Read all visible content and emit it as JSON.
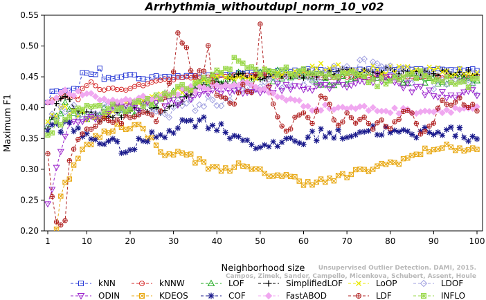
{
  "chart_data": {
    "type": "line",
    "title": "Arrhythmia_withoutdupl_norm_10_v02",
    "xlabel": "Neighborhood size",
    "ylabel": "Maximum F1",
    "xlim": [
      1,
      100
    ],
    "ylim": [
      0.2,
      0.55
    ],
    "xticks": [
      "1",
      "10",
      "20",
      "30",
      "40",
      "50",
      "60",
      "70",
      "80",
      "90",
      "100"
    ],
    "yticks": [
      "0.20",
      "0.25",
      "0.30",
      "0.35",
      "0.40",
      "0.45",
      "0.50",
      "0.55"
    ],
    "grid": false,
    "legend_position": "bottom",
    "watermark_lines": [
      "Campos, Zimek, Sander, Campello, Micenkova, Schubert, Assent, Houle",
      "Unsupervised Outlier Detection. DAMI, 2015."
    ],
    "series": [
      {
        "name": "kNN",
        "color": "#2a3bd6",
        "marker": "square-open",
        "dash": "4,3",
        "anchors": [
          [
            1,
            0.41
          ],
          [
            2,
            0.425
          ],
          [
            3,
            0.425
          ],
          [
            5,
            0.43
          ],
          [
            8,
            0.43
          ],
          [
            9,
            0.455
          ],
          [
            12,
            0.455
          ],
          [
            13,
            0.465
          ],
          [
            14,
            0.445
          ],
          [
            20,
            0.455
          ],
          [
            23,
            0.445
          ],
          [
            26,
            0.45
          ],
          [
            35,
            0.45
          ],
          [
            45,
            0.455
          ],
          [
            55,
            0.46
          ],
          [
            65,
            0.462
          ],
          [
            75,
            0.462
          ],
          [
            85,
            0.462
          ],
          [
            100,
            0.462
          ]
        ],
        "noise": 0.002
      },
      {
        "name": "kNNW",
        "color": "#d42a2a",
        "marker": "circle-open",
        "dash": "4,3",
        "anchors": [
          [
            1,
            0.41
          ],
          [
            3,
            0.415
          ],
          [
            6,
            0.42
          ],
          [
            8,
            0.415
          ],
          [
            9,
            0.43
          ],
          [
            11,
            0.44
          ],
          [
            13,
            0.43
          ],
          [
            19,
            0.43
          ],
          [
            21,
            0.435
          ],
          [
            25,
            0.44
          ],
          [
            27,
            0.445
          ],
          [
            35,
            0.45
          ],
          [
            55,
            0.452
          ],
          [
            65,
            0.45
          ],
          [
            80,
            0.45
          ],
          [
            100,
            0.45
          ]
        ],
        "noise": 0.002
      },
      {
        "name": "LOF",
        "color": "#22aa22",
        "marker": "triangle-up-open",
        "dash": "4,3",
        "anchors": [
          [
            1,
            0.37
          ],
          [
            3,
            0.39
          ],
          [
            5,
            0.4
          ],
          [
            8,
            0.385
          ],
          [
            12,
            0.39
          ],
          [
            16,
            0.4
          ],
          [
            20,
            0.395
          ],
          [
            25,
            0.41
          ],
          [
            30,
            0.42
          ],
          [
            35,
            0.435
          ],
          [
            40,
            0.445
          ],
          [
            45,
            0.45
          ],
          [
            55,
            0.452
          ],
          [
            65,
            0.445
          ],
          [
            75,
            0.45
          ],
          [
            90,
            0.448
          ],
          [
            100,
            0.445
          ]
        ],
        "noise": 0.01
      },
      {
        "name": "SimplifiedLOF",
        "color": "#000000",
        "marker": "plus",
        "dash": "4,3",
        "anchors": [
          [
            1,
            0.37
          ],
          [
            3,
            0.41
          ],
          [
            5,
            0.415
          ],
          [
            7,
            0.4
          ],
          [
            10,
            0.39
          ],
          [
            14,
            0.38
          ],
          [
            18,
            0.39
          ],
          [
            22,
            0.4
          ],
          [
            26,
            0.395
          ],
          [
            30,
            0.4
          ],
          [
            33,
            0.415
          ],
          [
            36,
            0.43
          ],
          [
            40,
            0.44
          ],
          [
            45,
            0.45
          ],
          [
            55,
            0.452
          ],
          [
            65,
            0.455
          ],
          [
            75,
            0.46
          ],
          [
            90,
            0.458
          ],
          [
            100,
            0.455
          ]
        ],
        "noise": 0.006
      },
      {
        "name": "LoOP",
        "color": "#e8e800",
        "marker": "cross",
        "dash": "4,3",
        "anchors": [
          [
            1,
            0.38
          ],
          [
            4,
            0.4
          ],
          [
            8,
            0.39
          ],
          [
            12,
            0.385
          ],
          [
            18,
            0.4
          ],
          [
            24,
            0.41
          ],
          [
            30,
            0.42
          ],
          [
            36,
            0.44
          ],
          [
            42,
            0.45
          ],
          [
            50,
            0.455
          ],
          [
            60,
            0.46
          ],
          [
            66,
            0.47
          ],
          [
            72,
            0.462
          ],
          [
            80,
            0.46
          ],
          [
            90,
            0.458
          ],
          [
            100,
            0.455
          ]
        ],
        "noise": 0.008
      },
      {
        "name": "LDOF",
        "color": "#a0a0e0",
        "marker": "diamond-open",
        "dash": "4,3",
        "anchors": [
          [
            1,
            0.38
          ],
          [
            5,
            0.395
          ],
          [
            10,
            0.39
          ],
          [
            15,
            0.4
          ],
          [
            20,
            0.395
          ],
          [
            25,
            0.4
          ],
          [
            30,
            0.395
          ],
          [
            35,
            0.405
          ],
          [
            40,
            0.41
          ],
          [
            48,
            0.43
          ],
          [
            55,
            0.44
          ],
          [
            62,
            0.445
          ],
          [
            68,
            0.46
          ],
          [
            75,
            0.47
          ],
          [
            82,
            0.455
          ],
          [
            90,
            0.44
          ],
          [
            100,
            0.43
          ]
        ],
        "noise": 0.012
      },
      {
        "name": "ODIN",
        "color": "#9a22cc",
        "marker": "triangle-down-open",
        "dash": "4,3",
        "anchors": [
          [
            1,
            0.24
          ],
          [
            2,
            0.27
          ],
          [
            3,
            0.3
          ],
          [
            4,
            0.33
          ],
          [
            5,
            0.36
          ],
          [
            7,
            0.38
          ],
          [
            10,
            0.38
          ],
          [
            14,
            0.39
          ],
          [
            18,
            0.4
          ],
          [
            24,
            0.405
          ],
          [
            30,
            0.41
          ],
          [
            35,
            0.42
          ],
          [
            40,
            0.425
          ],
          [
            50,
            0.43
          ],
          [
            60,
            0.435
          ],
          [
            70,
            0.44
          ],
          [
            80,
            0.45
          ],
          [
            85,
            0.43
          ],
          [
            88,
            0.425
          ],
          [
            95,
            0.42
          ],
          [
            100,
            0.425
          ]
        ],
        "noise": 0.008
      },
      {
        "name": "KDEOS",
        "color": "#e8a812",
        "marker": "square-x",
        "dash": "4,3",
        "anchors": [
          [
            1,
            0.195
          ],
          [
            3,
            0.205
          ],
          [
            4,
            0.26
          ],
          [
            6,
            0.29
          ],
          [
            9,
            0.33
          ],
          [
            12,
            0.35
          ],
          [
            17,
            0.37
          ],
          [
            22,
            0.37
          ],
          [
            26,
            0.34
          ],
          [
            29,
            0.32
          ],
          [
            32,
            0.33
          ],
          [
            35,
            0.315
          ],
          [
            40,
            0.3
          ],
          [
            45,
            0.305
          ],
          [
            50,
            0.295
          ],
          [
            55,
            0.29
          ],
          [
            60,
            0.28
          ],
          [
            65,
            0.28
          ],
          [
            70,
            0.29
          ],
          [
            75,
            0.3
          ],
          [
            80,
            0.31
          ],
          [
            85,
            0.32
          ],
          [
            90,
            0.335
          ],
          [
            95,
            0.335
          ],
          [
            100,
            0.33
          ]
        ],
        "noise": 0.006
      },
      {
        "name": "COF",
        "color": "#1a1a8c",
        "marker": "asterisk",
        "dash": "4,3",
        "anchors": [
          [
            1,
            0.365
          ],
          [
            3,
            0.37
          ],
          [
            6,
            0.37
          ],
          [
            9,
            0.355
          ],
          [
            12,
            0.35
          ],
          [
            16,
            0.34
          ],
          [
            20,
            0.33
          ],
          [
            24,
            0.35
          ],
          [
            28,
            0.36
          ],
          [
            32,
            0.375
          ],
          [
            36,
            0.38
          ],
          [
            40,
            0.37
          ],
          [
            44,
            0.355
          ],
          [
            48,
            0.345
          ],
          [
            52,
            0.33
          ],
          [
            56,
            0.35
          ],
          [
            60,
            0.345
          ],
          [
            64,
            0.36
          ],
          [
            68,
            0.355
          ],
          [
            72,
            0.36
          ],
          [
            76,
            0.365
          ],
          [
            80,
            0.36
          ],
          [
            85,
            0.355
          ],
          [
            90,
            0.365
          ],
          [
            95,
            0.36
          ],
          [
            100,
            0.35
          ]
        ],
        "noise": 0.01
      },
      {
        "name": "FastABOD",
        "color": "#f0a8f0",
        "marker": "diamond-filled",
        "dash": "4,3",
        "anchors": [
          [
            1,
            0.41
          ],
          [
            5,
            0.425
          ],
          [
            10,
            0.42
          ],
          [
            16,
            0.41
          ],
          [
            22,
            0.415
          ],
          [
            28,
            0.42
          ],
          [
            34,
            0.43
          ],
          [
            40,
            0.435
          ],
          [
            46,
            0.44
          ],
          [
            52,
            0.425
          ],
          [
            58,
            0.41
          ],
          [
            62,
            0.4
          ],
          [
            66,
            0.4
          ],
          [
            72,
            0.4
          ],
          [
            80,
            0.395
          ],
          [
            90,
            0.395
          ],
          [
            100,
            0.4
          ]
        ],
        "noise": 0.005
      },
      {
        "name": "LDF",
        "color": "#b02020",
        "marker": "circle-plus",
        "dash": "4,3",
        "anchors": [
          [
            1,
            0.32
          ],
          [
            2,
            0.255
          ],
          [
            3,
            0.21
          ],
          [
            4,
            0.205
          ],
          [
            5,
            0.215
          ],
          [
            6,
            0.31
          ],
          [
            8,
            0.35
          ],
          [
            10,
            0.36
          ],
          [
            12,
            0.37
          ],
          [
            15,
            0.38
          ],
          [
            18,
            0.38
          ],
          [
            22,
            0.39
          ],
          [
            26,
            0.38
          ],
          [
            28,
            0.42
          ],
          [
            30,
            0.46
          ],
          [
            31,
            0.525
          ],
          [
            32,
            0.5
          ],
          [
            33,
            0.5
          ],
          [
            34,
            0.46
          ],
          [
            35,
            0.45
          ],
          [
            37,
            0.46
          ],
          [
            38,
            0.5
          ],
          [
            39,
            0.44
          ],
          [
            40,
            0.42
          ],
          [
            44,
            0.4
          ],
          [
            46,
            0.44
          ],
          [
            48,
            0.42
          ],
          [
            49,
            0.46
          ],
          [
            50,
            0.53
          ],
          [
            51,
            0.45
          ],
          [
            52,
            0.43
          ],
          [
            54,
            0.38
          ],
          [
            56,
            0.36
          ],
          [
            58,
            0.38
          ],
          [
            60,
            0.39
          ],
          [
            62,
            0.38
          ],
          [
            64,
            0.42
          ],
          [
            66,
            0.4
          ],
          [
            68,
            0.37
          ],
          [
            70,
            0.39
          ],
          [
            72,
            0.37
          ],
          [
            74,
            0.38
          ],
          [
            76,
            0.36
          ],
          [
            78,
            0.38
          ],
          [
            80,
            0.37
          ],
          [
            84,
            0.4
          ],
          [
            87,
            0.36
          ],
          [
            90,
            0.38
          ],
          [
            92,
            0.41
          ],
          [
            94,
            0.4
          ],
          [
            96,
            0.41
          ],
          [
            100,
            0.4
          ]
        ],
        "noise": 0.006
      },
      {
        "name": "INFLO",
        "color": "#9ad84a",
        "marker": "square-star",
        "dash": "4,3",
        "anchors": [
          [
            1,
            0.36
          ],
          [
            4,
            0.38
          ],
          [
            8,
            0.4
          ],
          [
            12,
            0.395
          ],
          [
            16,
            0.4
          ],
          [
            20,
            0.4
          ],
          [
            24,
            0.41
          ],
          [
            28,
            0.42
          ],
          [
            32,
            0.43
          ],
          [
            36,
            0.44
          ],
          [
            40,
            0.455
          ],
          [
            44,
            0.475
          ],
          [
            48,
            0.46
          ],
          [
            52,
            0.46
          ],
          [
            56,
            0.46
          ],
          [
            60,
            0.455
          ],
          [
            65,
            0.45
          ],
          [
            70,
            0.455
          ],
          [
            76,
            0.44
          ],
          [
            82,
            0.445
          ],
          [
            88,
            0.455
          ],
          [
            94,
            0.44
          ],
          [
            100,
            0.44
          ]
        ],
        "noise": 0.008
      }
    ]
  }
}
